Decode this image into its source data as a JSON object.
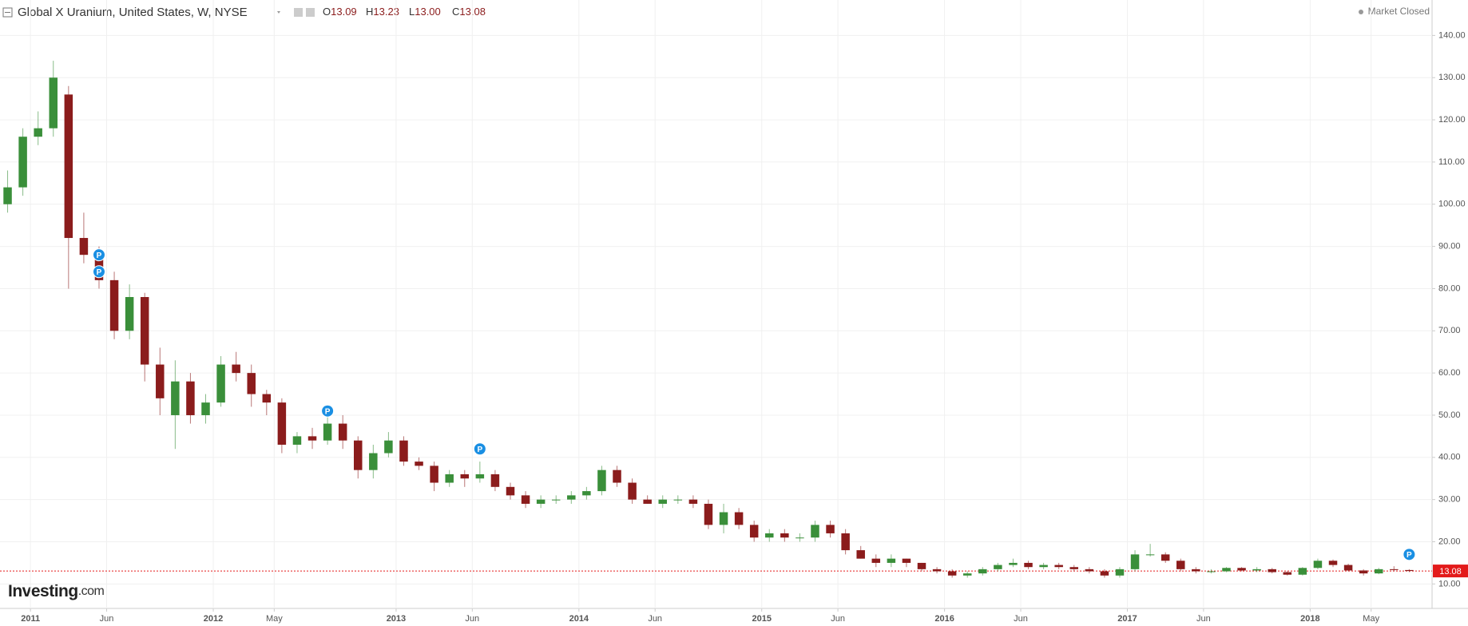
{
  "chart_data": {
    "type": "candlestick",
    "title": "Global X Uranium, United States, W, NYSE",
    "ohlc_header": [
      {
        "label": "O",
        "value": "13.09"
      },
      {
        "label": "H",
        "value": "13.23"
      },
      {
        "label": "L",
        "value": "13.00"
      },
      {
        "label": "C",
        "value": "13.08"
      }
    ],
    "status": "Market Closed",
    "logo": "Investing",
    "logo_suffix": ".com",
    "up_color": "#3a8f3a",
    "down_color": "#8b1c1c",
    "last_price": 13.08,
    "last_price_color": "#e31b1b",
    "x": [
      "2010-11",
      "2010-12",
      "2011-01",
      "2011-02",
      "2011-03",
      "2011-04",
      "2011-05",
      "2011-06",
      "2011-07",
      "2011-08",
      "2011-09",
      "2011-10",
      "2011-11",
      "2011-12",
      "2012-01",
      "2012-02",
      "2012-03",
      "2012-04",
      "2012-05",
      "2012-06",
      "2012-07",
      "2012-08",
      "2012-09",
      "2012-10",
      "2012-11",
      "2012-12",
      "2013-01",
      "2013-02",
      "2013-03",
      "2013-04",
      "2013-05",
      "2013-06",
      "2013-07",
      "2013-08",
      "2013-09",
      "2013-10",
      "2013-11",
      "2013-12",
      "2014-01",
      "2014-02",
      "2014-03",
      "2014-04",
      "2014-05",
      "2014-06",
      "2014-07",
      "2014-08",
      "2014-09",
      "2014-10",
      "2014-11",
      "2014-12",
      "2015-01",
      "2015-02",
      "2015-03",
      "2015-04",
      "2015-05",
      "2015-06",
      "2015-07",
      "2015-08",
      "2015-09",
      "2015-10",
      "2015-11",
      "2015-12",
      "2016-01",
      "2016-02",
      "2016-03",
      "2016-04",
      "2016-05",
      "2016-06",
      "2016-07",
      "2016-08",
      "2016-09",
      "2016-10",
      "2016-11",
      "2016-12",
      "2017-01",
      "2017-02",
      "2017-03",
      "2017-04",
      "2017-05",
      "2017-06",
      "2017-07",
      "2017-08",
      "2017-09",
      "2017-10",
      "2017-11",
      "2017-12",
      "2018-01",
      "2018-02",
      "2018-03",
      "2018-04",
      "2018-05",
      "2018-06",
      "2018-07"
    ],
    "open": [
      100,
      104,
      116,
      118,
      126,
      92,
      88,
      82,
      70,
      78,
      62,
      50,
      58,
      50,
      53,
      62,
      60,
      55,
      53,
      43,
      45,
      44,
      48,
      44,
      37,
      41,
      44,
      39,
      38,
      34,
      36,
      35,
      36,
      33,
      31,
      29,
      30,
      30,
      31,
      32,
      37,
      34,
      30,
      29,
      30,
      30,
      29,
      24,
      27,
      24,
      21,
      22,
      21,
      21,
      24,
      22,
      18,
      16,
      15,
      16,
      15,
      13.5,
      13,
      12,
      12.5,
      13.5,
      14.5,
      15,
      14,
      14.5,
      14,
      13.5,
      13,
      12,
      13.5,
      17,
      17,
      15.5,
      13.5,
      13,
      13,
      13.8,
      13.2,
      13.5,
      12.8,
      12.2,
      13.8,
      15.5,
      14.5,
      13.2,
      12.5,
      13.5,
      13.3
    ],
    "high": [
      108,
      118,
      122,
      134,
      128,
      98,
      90,
      84,
      81,
      79,
      66,
      63,
      60,
      55,
      64,
      65,
      62,
      56,
      54,
      46,
      47,
      50,
      50,
      45,
      43,
      46,
      45,
      40,
      39,
      37,
      37,
      39,
      37,
      34,
      32,
      31,
      31,
      32,
      33,
      38,
      38,
      35,
      31,
      31,
      31,
      31,
      30,
      29,
      28,
      25,
      23,
      23,
      22,
      25,
      25,
      23,
      19,
      17,
      17,
      16,
      15,
      14,
      13.5,
      13,
      14,
      15,
      16,
      15.5,
      15,
      15,
      14.5,
      14,
      13.5,
      14,
      18,
      19.5,
      17.5,
      16,
      14,
      13.5,
      14,
      14,
      14,
      13.8,
      13,
      14,
      16,
      15.8,
      14.8,
      13.5,
      13.8,
      14.2,
      13.5
    ],
    "low": [
      98,
      102,
      114,
      116,
      80,
      86,
      80,
      68,
      68,
      58,
      50,
      42,
      48,
      48,
      52,
      58,
      52,
      50,
      41,
      41,
      42,
      43,
      42,
      35,
      35,
      40,
      38,
      37,
      32,
      33,
      33,
      34,
      32,
      30,
      28,
      28,
      29,
      29,
      30,
      31,
      33,
      29,
      29,
      28,
      29,
      28,
      23,
      22,
      23,
      20,
      20,
      20,
      20,
      20,
      21,
      17,
      16,
      14,
      14,
      14,
      13,
      12.5,
      11.5,
      11.5,
      12,
      13,
      14,
      13.5,
      13.5,
      13.5,
      13,
      12.5,
      11.5,
      11.5,
      13,
      16.5,
      15,
      13,
      12.5,
      12.5,
      12.8,
      13,
      12.8,
      12.5,
      12,
      12,
      13.5,
      14,
      13,
      12,
      12.3,
      13,
      12.8
    ],
    "close": [
      104,
      116,
      118,
      130,
      92,
      88,
      82,
      70,
      78,
      62,
      54,
      58,
      50,
      53,
      62,
      60,
      55,
      53,
      43,
      45,
      44,
      48,
      44,
      37,
      41,
      44,
      39,
      38,
      34,
      36,
      35,
      36,
      33,
      31,
      29,
      30,
      30,
      31,
      32,
      37,
      34,
      30,
      29,
      30,
      30,
      29,
      24,
      27,
      24,
      21,
      22,
      21,
      21,
      24,
      22,
      18,
      16,
      15,
      16,
      15,
      13.5,
      13,
      12,
      12.5,
      13.5,
      14.5,
      15,
      14,
      14.5,
      14,
      13.5,
      13,
      12,
      13.5,
      17,
      17,
      15.5,
      13.5,
      13,
      13,
      13.8,
      13.2,
      13.5,
      12.8,
      12.2,
      13.8,
      15.5,
      14.5,
      13.2,
      12.5,
      13.5,
      13.3,
      13.08
    ],
    "markers": [
      {
        "x": "2011-05",
        "y": 88,
        "label": "P"
      },
      {
        "x": "2011-05",
        "y": 84,
        "label": "P"
      },
      {
        "x": "2012-08",
        "y": 51,
        "label": "P"
      },
      {
        "x": "2013-06",
        "y": 42,
        "label": "P"
      },
      {
        "x": "2018-07",
        "y": 17,
        "label": "P"
      }
    ],
    "marker_color": "#1a8fe3",
    "xlim": [
      "2010-11",
      "2018-09"
    ],
    "xticks": [
      {
        "value": "2011-01",
        "label": "2011"
      },
      {
        "value": "2011-06",
        "label": "Jun"
      },
      {
        "value": "2012-01",
        "label": "2012"
      },
      {
        "value": "2012-05",
        "label": "May"
      },
      {
        "value": "2013-01",
        "label": "2013"
      },
      {
        "value": "2013-06",
        "label": "Jun"
      },
      {
        "value": "2014-01",
        "label": "2014"
      },
      {
        "value": "2014-06",
        "label": "Jun"
      },
      {
        "value": "2015-01",
        "label": "2015"
      },
      {
        "value": "2015-06",
        "label": "Jun"
      },
      {
        "value": "2016-01",
        "label": "2016"
      },
      {
        "value": "2016-06",
        "label": "Jun"
      },
      {
        "value": "2017-01",
        "label": "2017"
      },
      {
        "value": "2017-06",
        "label": "Jun"
      },
      {
        "value": "2018-01",
        "label": "2018"
      },
      {
        "value": "2018-05",
        "label": "May"
      }
    ],
    "ylim": [
      4.2,
      143.1
    ],
    "yticks": [
      {
        "value": 10,
        "label": "10.00"
      },
      {
        "value": 20,
        "label": "20.00"
      },
      {
        "value": 30,
        "label": "30.00"
      },
      {
        "value": 40,
        "label": "40.00"
      },
      {
        "value": 50,
        "label": "50.00"
      },
      {
        "value": 60,
        "label": "60.00"
      },
      {
        "value": 70,
        "label": "70.00"
      },
      {
        "value": 80,
        "label": "80.00"
      },
      {
        "value": 90,
        "label": "90.00"
      },
      {
        "value": 100,
        "label": "100.00"
      },
      {
        "value": 110,
        "label": "110.00"
      },
      {
        "value": 120,
        "label": "120.00"
      },
      {
        "value": 130,
        "label": "130.00"
      },
      {
        "value": 140,
        "label": "140.00"
      }
    ],
    "grid": true
  }
}
